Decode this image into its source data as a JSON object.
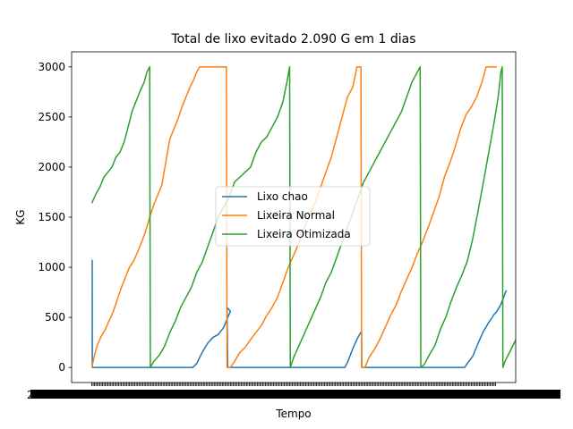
{
  "chart_data": {
    "type": "line",
    "title": "Total de lixo evitado 2.090 G em 1 dias",
    "xlabel": "Tempo",
    "ylabel": "KG",
    "xlim": [
      -15,
      315
    ],
    "ylim": [
      -150,
      3150
    ],
    "yticks": [
      0,
      500,
      1000,
      1500,
      2000,
      2500,
      3000
    ],
    "x_ticks_unreadable": true,
    "x_tick_label_fragments": [
      "2",
      "9"
    ],
    "legend_position": "center",
    "colors": {
      "Lixo chao": "#1f77b4",
      "Lixeira Normal": "#ff7f0e",
      "Lixeira Otimizada": "#2ca02c"
    },
    "series": [
      {
        "name": "Lixo chao",
        "points": [
          [
            0,
            1070
          ],
          [
            0.3,
            1070
          ],
          [
            0.4,
            0
          ],
          [
            75,
            0
          ],
          [
            78,
            40
          ],
          [
            82,
            150
          ],
          [
            86,
            240
          ],
          [
            90,
            300
          ],
          [
            94,
            330
          ],
          [
            98,
            400
          ],
          [
            101,
            500
          ],
          [
            103,
            560
          ],
          [
            100.5,
            600
          ],
          [
            101,
            0
          ],
          [
            188,
            0
          ],
          [
            190,
            50
          ],
          [
            194,
            190
          ],
          [
            197,
            280
          ],
          [
            199,
            330
          ],
          [
            200.5,
            360
          ],
          [
            200.6,
            0
          ],
          [
            277,
            0
          ],
          [
            279,
            40
          ],
          [
            283,
            110
          ],
          [
            287,
            240
          ],
          [
            291,
            360
          ],
          [
            295,
            450
          ],
          [
            299,
            530
          ],
          [
            301,
            560
          ],
          [
            304,
            630
          ],
          [
            306,
            700
          ],
          [
            308,
            770
          ]
        ]
      },
      {
        "name": "Lixeira Normal",
        "points": [
          [
            0,
            0
          ],
          [
            2,
            120
          ],
          [
            4,
            220
          ],
          [
            7,
            310
          ],
          [
            10,
            380
          ],
          [
            13,
            470
          ],
          [
            16,
            560
          ],
          [
            19,
            680
          ],
          [
            22,
            800
          ],
          [
            25,
            900
          ],
          [
            28,
            1000
          ],
          [
            31,
            1060
          ],
          [
            34,
            1150
          ],
          [
            37,
            1250
          ],
          [
            40,
            1360
          ],
          [
            43,
            1500
          ],
          [
            46,
            1620
          ],
          [
            49,
            1720
          ],
          [
            52,
            1820
          ],
          [
            55,
            2050
          ],
          [
            58,
            2280
          ],
          [
            61,
            2380
          ],
          [
            64,
            2480
          ],
          [
            67,
            2600
          ],
          [
            70,
            2700
          ],
          [
            73,
            2800
          ],
          [
            75,
            2850
          ],
          [
            78,
            2950
          ],
          [
            80,
            3000
          ],
          [
            100,
            3000
          ],
          [
            100.5,
            0
          ],
          [
            103,
            0
          ],
          [
            106,
            60
          ],
          [
            110,
            150
          ],
          [
            114,
            200
          ],
          [
            118,
            280
          ],
          [
            122,
            350
          ],
          [
            126,
            420
          ],
          [
            130,
            520
          ],
          [
            134,
            600
          ],
          [
            138,
            700
          ],
          [
            142,
            850
          ],
          [
            146,
            1000
          ],
          [
            150,
            1120
          ],
          [
            154,
            1250
          ],
          [
            158,
            1400
          ],
          [
            162,
            1520
          ],
          [
            166,
            1650
          ],
          [
            170,
            1800
          ],
          [
            174,
            1950
          ],
          [
            178,
            2100
          ],
          [
            182,
            2300
          ],
          [
            186,
            2500
          ],
          [
            190,
            2700
          ],
          [
            194,
            2800
          ],
          [
            197,
            3000
          ],
          [
            200,
            3000
          ],
          [
            200.5,
            0
          ],
          [
            203,
            0
          ],
          [
            206,
            100
          ],
          [
            210,
            180
          ],
          [
            214,
            280
          ],
          [
            218,
            400
          ],
          [
            222,
            520
          ],
          [
            226,
            620
          ],
          [
            230,
            760
          ],
          [
            234,
            880
          ],
          [
            238,
            1000
          ],
          [
            242,
            1140
          ],
          [
            246,
            1260
          ],
          [
            250,
            1400
          ],
          [
            254,
            1550
          ],
          [
            258,
            1700
          ],
          [
            262,
            1900
          ],
          [
            266,
            2040
          ],
          [
            270,
            2200
          ],
          [
            274,
            2380
          ],
          [
            278,
            2520
          ],
          [
            282,
            2600
          ],
          [
            286,
            2700
          ],
          [
            290,
            2850
          ],
          [
            293,
            3000
          ],
          [
            301,
            3000
          ]
        ]
      },
      {
        "name": "Lixeira Otimizada",
        "points": [
          [
            0,
            1640
          ],
          [
            3,
            1730
          ],
          [
            6,
            1800
          ],
          [
            9,
            1900
          ],
          [
            12,
            1950
          ],
          [
            15,
            2000
          ],
          [
            18,
            2100
          ],
          [
            21,
            2150
          ],
          [
            24,
            2250
          ],
          [
            27,
            2400
          ],
          [
            30,
            2560
          ],
          [
            33,
            2660
          ],
          [
            36,
            2760
          ],
          [
            39,
            2850
          ],
          [
            41,
            2950
          ],
          [
            43,
            3000
          ],
          [
            43.5,
            0
          ],
          [
            46,
            60
          ],
          [
            50,
            120
          ],
          [
            54,
            210
          ],
          [
            58,
            350
          ],
          [
            62,
            460
          ],
          [
            66,
            600
          ],
          [
            70,
            700
          ],
          [
            74,
            800
          ],
          [
            78,
            950
          ],
          [
            82,
            1050
          ],
          [
            86,
            1200
          ],
          [
            90,
            1350
          ],
          [
            94,
            1500
          ],
          [
            98,
            1600
          ],
          [
            102,
            1700
          ],
          [
            106,
            1850
          ],
          [
            110,
            1900
          ],
          [
            114,
            1950
          ],
          [
            118,
            2000
          ],
          [
            122,
            2150
          ],
          [
            126,
            2250
          ],
          [
            130,
            2300
          ],
          [
            134,
            2400
          ],
          [
            138,
            2500
          ],
          [
            142,
            2650
          ],
          [
            145,
            2850
          ],
          [
            147,
            3000
          ],
          [
            147.5,
            0
          ],
          [
            150,
            100
          ],
          [
            154,
            220
          ],
          [
            158,
            340
          ],
          [
            162,
            460
          ],
          [
            166,
            580
          ],
          [
            170,
            700
          ],
          [
            174,
            850
          ],
          [
            178,
            950
          ],
          [
            182,
            1100
          ],
          [
            186,
            1250
          ],
          [
            190,
            1400
          ],
          [
            194,
            1550
          ],
          [
            198,
            1700
          ],
          [
            202,
            1850
          ],
          [
            206,
            1950
          ],
          [
            210,
            2050
          ],
          [
            214,
            2150
          ],
          [
            218,
            2250
          ],
          [
            222,
            2350
          ],
          [
            226,
            2450
          ],
          [
            230,
            2550
          ],
          [
            234,
            2700
          ],
          [
            238,
            2850
          ],
          [
            242,
            2950
          ],
          [
            244,
            3000
          ],
          [
            244.5,
            0
          ],
          [
            247,
            30
          ],
          [
            251,
            130
          ],
          [
            255,
            220
          ],
          [
            259,
            380
          ],
          [
            263,
            500
          ],
          [
            267,
            660
          ],
          [
            271,
            800
          ],
          [
            275,
            920
          ],
          [
            279,
            1060
          ],
          [
            283,
            1280
          ],
          [
            287,
            1560
          ],
          [
            291,
            1850
          ],
          [
            295,
            2150
          ],
          [
            299,
            2450
          ],
          [
            302,
            2700
          ],
          [
            304,
            2950
          ],
          [
            305,
            3000
          ],
          [
            305.5,
            0
          ],
          [
            307,
            60
          ],
          [
            310,
            140
          ],
          [
            313,
            220
          ],
          [
            316,
            300
          ],
          [
            318,
            400
          ],
          [
            320,
            490
          ]
        ]
      }
    ]
  }
}
